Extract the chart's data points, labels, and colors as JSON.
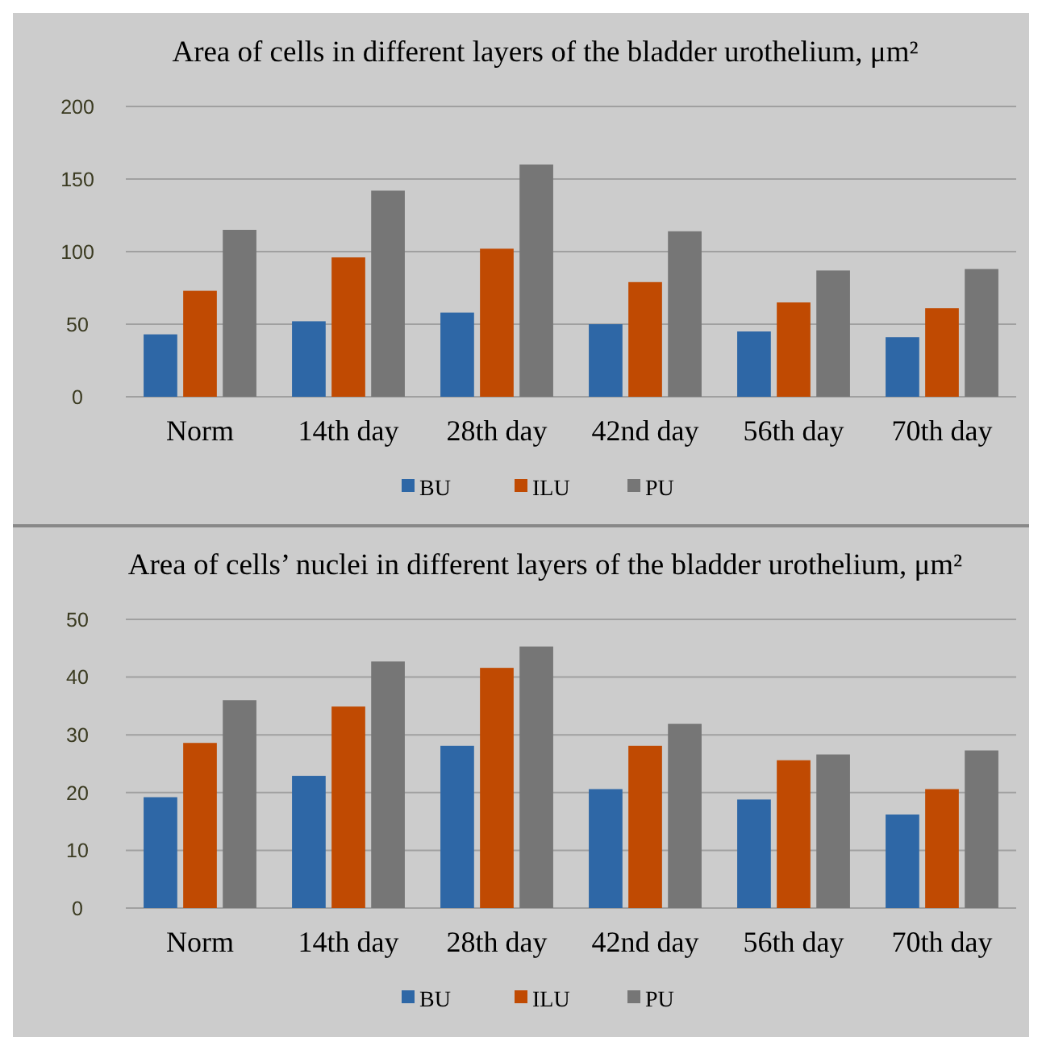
{
  "chart_data": [
    {
      "type": "bar",
      "title": "Area of cells in different layers of the bladder urothelium, μm²",
      "categories": [
        "Norm",
        "14th day",
        "28th day",
        "42nd day",
        "56th day",
        "70th day"
      ],
      "series": [
        {
          "name": "BU",
          "color": "#2e67a6",
          "values": [
            43,
            52,
            58,
            50,
            45,
            41
          ]
        },
        {
          "name": "ILU",
          "color": "#c04a02",
          "values": [
            73,
            96,
            102,
            79,
            65,
            61
          ]
        },
        {
          "name": "PU",
          "color": "#767676",
          "values": [
            115,
            142,
            160,
            114,
            87,
            88
          ]
        }
      ],
      "ylim": [
        0,
        200
      ],
      "yticks": [
        0,
        50,
        100,
        150,
        200
      ],
      "grid": "y",
      "legend": "bottom"
    },
    {
      "type": "bar",
      "title": "Area of cells’ nuclei in different layers of the bladder urothelium, μm²",
      "categories": [
        "Norm",
        "14th day",
        "28th day",
        "42nd day",
        "56th day",
        "70th day"
      ],
      "series": [
        {
          "name": "BU",
          "color": "#2e67a6",
          "values": [
            19.2,
            22.9,
            28.1,
            20.6,
            18.8,
            16.2
          ]
        },
        {
          "name": "ILU",
          "color": "#c04a02",
          "values": [
            28.6,
            34.9,
            41.6,
            28.1,
            25.6,
            20.6
          ]
        },
        {
          "name": "PU",
          "color": "#767676",
          "values": [
            36,
            42.7,
            45.3,
            31.9,
            26.6,
            27.3
          ]
        }
      ],
      "ylim": [
        0,
        50
      ],
      "yticks": [
        0,
        10,
        20,
        30,
        40,
        50
      ],
      "grid": "y",
      "legend": "bottom"
    }
  ]
}
